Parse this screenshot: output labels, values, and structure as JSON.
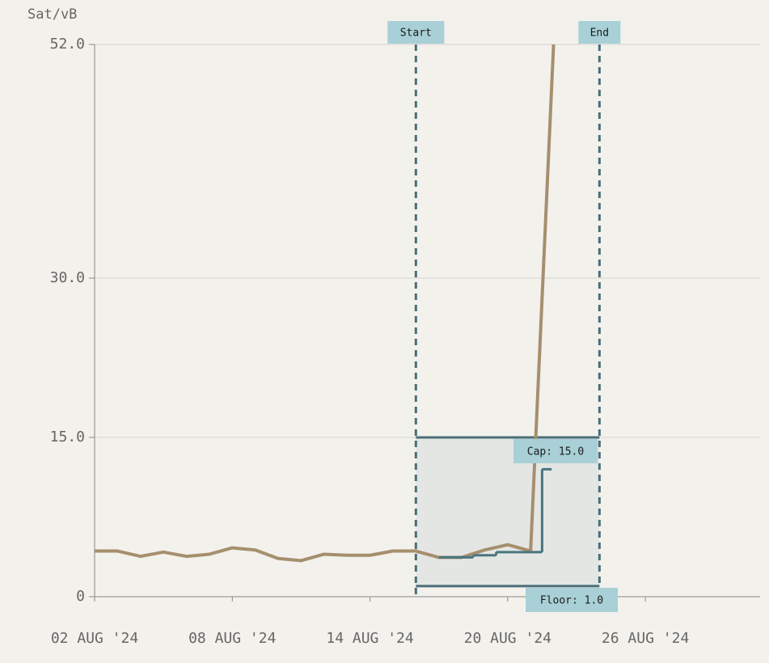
{
  "chart_data": {
    "type": "line",
    "y_label": "Sat/vB",
    "xlim": [
      "2024-08-02",
      "2024-08-31"
    ],
    "xticks": [
      {
        "value": "2024-08-02",
        "label": "02 AUG '24"
      },
      {
        "value": "2024-08-08",
        "label": "08 AUG '24"
      },
      {
        "value": "2024-08-14",
        "label": "14 AUG '24"
      },
      {
        "value": "2024-08-20",
        "label": "20 AUG '24"
      },
      {
        "value": "2024-08-26",
        "label": "26 AUG '24"
      }
    ],
    "ylim": [
      0,
      52
    ],
    "yticks": [
      0,
      {
        "value": 15,
        "label": "15.0"
      },
      {
        "value": 30,
        "label": "30.0"
      },
      {
        "value": 52,
        "label": "52.0"
      }
    ],
    "grid": true,
    "series": [
      {
        "color": "#a68f6e",
        "x": [
          "2024-08-02",
          "2024-08-03",
          "2024-08-04",
          "2024-08-05",
          "2024-08-06",
          "2024-08-07",
          "2024-08-08",
          "2024-08-09",
          "2024-08-10",
          "2024-08-11",
          "2024-08-12",
          "2024-08-13",
          "2024-08-14",
          "2024-08-15",
          "2024-08-16",
          "2024-08-17",
          "2024-08-18",
          "2024-08-19",
          "2024-08-20",
          "2024-08-21",
          "2024-08-22"
        ],
        "values": [
          4.3,
          4.3,
          3.8,
          4.2,
          3.8,
          4.0,
          4.6,
          4.4,
          3.6,
          3.4,
          4.0,
          3.9,
          3.9,
          4.3,
          4.3,
          3.7,
          3.7,
          4.4,
          4.9,
          4.3,
          52
        ]
      },
      {
        "color": "#4a7580",
        "step": true,
        "x": [
          "2024-08-17T00:00",
          "2024-08-18T12:00",
          "2024-08-19T12:00",
          "2024-08-21T12:00",
          "2024-08-21T22:00"
        ],
        "values": [
          3.7,
          3.9,
          4.2,
          12.0,
          12.0
        ]
      }
    ],
    "window": {
      "start": {
        "x": "2024-08-16",
        "label": "Start"
      },
      "end": {
        "x": "2024-08-24",
        "label": "End"
      },
      "cap": {
        "value": 15,
        "label": "Cap: 15.0"
      },
      "floor": {
        "value": 1.0,
        "label": "Floor: 1.0"
      }
    }
  }
}
